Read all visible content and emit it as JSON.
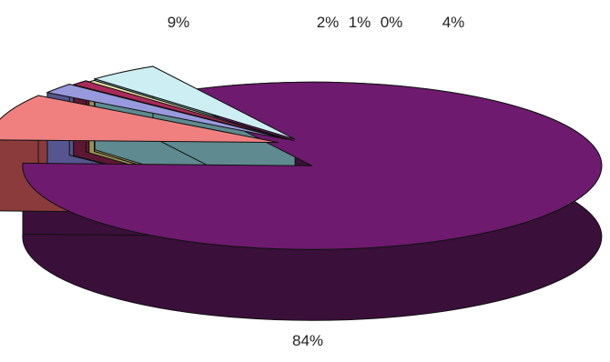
{
  "chart_data": {
    "type": "pie",
    "title": "",
    "three_d": true,
    "exploded": true,
    "legend": "none",
    "slices": [
      {
        "label": "84%",
        "value": 84,
        "color": "#6e1a6e",
        "side_color": "#3a0f3a"
      },
      {
        "label": "9%",
        "value": 9,
        "color": "#f08080",
        "side_color": "#8b3b3b"
      },
      {
        "label": "2%",
        "value": 2,
        "color": "#9999dd",
        "side_color": "#55558f"
      },
      {
        "label": "1%",
        "value": 1,
        "color": "#aa2a5a",
        "side_color": "#5e1733"
      },
      {
        "label": "0%",
        "value": 0.4,
        "color": "#f2e6a8",
        "side_color": "#9a8f55"
      },
      {
        "label": "4%",
        "value": 4,
        "color": "#cdeff4",
        "side_color": "#5e8a90"
      }
    ]
  }
}
